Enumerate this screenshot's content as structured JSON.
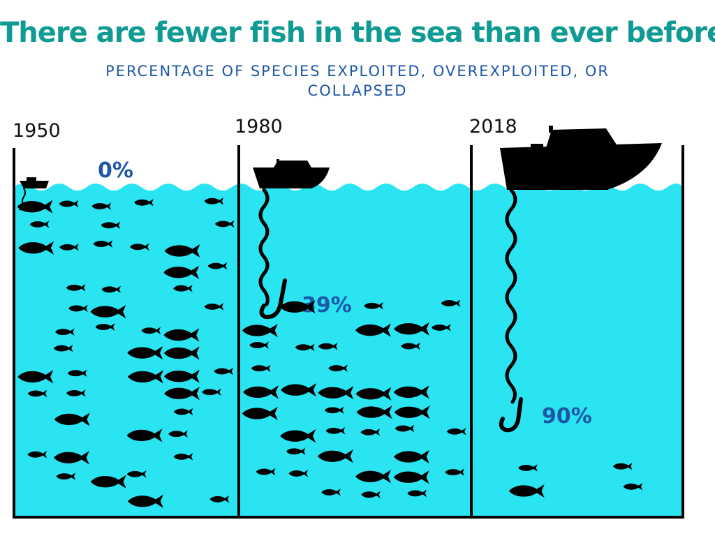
{
  "title": "There are fewer fish in the sea than ever before",
  "subtitle": "PERCENTAGE OF SPECIES EXPLOITED, OVEREXPLOITED, OR COLLAPSED",
  "colors": {
    "title": "#0f9b94",
    "subtitle": "#1d57a8",
    "water": "#2ae4f2",
    "ink": "#000000",
    "pct": "#1d57a8"
  },
  "chart_data": {
    "type": "bar",
    "categories": [
      "1950",
      "1980",
      "2018"
    ],
    "values": [
      0,
      39,
      90
    ],
    "value_labels": [
      "0%",
      "39%",
      "90%"
    ],
    "ylim": [
      0,
      100
    ],
    "unit": "%"
  }
}
